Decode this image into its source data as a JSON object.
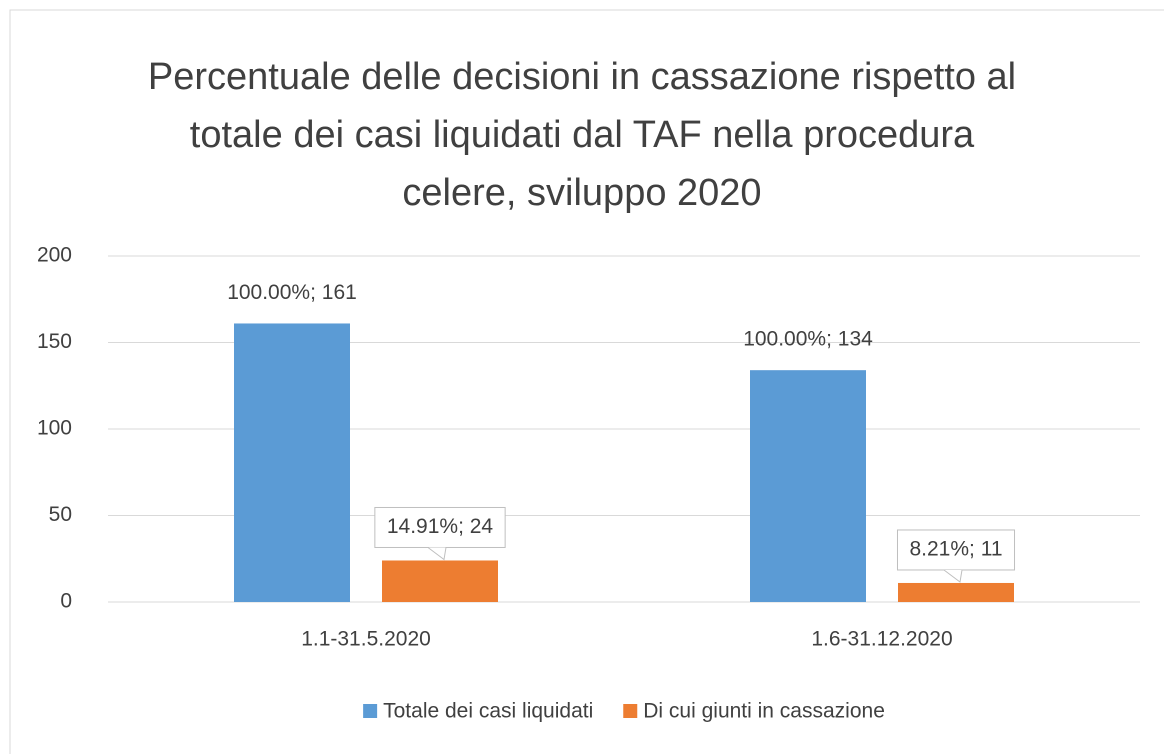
{
  "chart_data": {
    "type": "bar",
    "title": "Percentuale delle decisioni in cassazione rispetto al totale dei casi liquidati dal TAF nella procedura celere, sviluppo 2020",
    "categories": [
      "1.1-31.5.2020",
      "1.6-31.12.2020"
    ],
    "series": [
      {
        "name": "Totale dei casi liquidati",
        "color": "#5b9bd5",
        "values": [
          161,
          134
        ],
        "value_labels": [
          "100.00%; 161",
          "100.00%; 134"
        ]
      },
      {
        "name": "Di cui giunti in cassazione",
        "color": "#ed7d31",
        "values": [
          24,
          11
        ],
        "value_labels": [
          "14.91%; 24",
          "8.21%; 11"
        ]
      }
    ],
    "ylim": [
      0,
      200
    ],
    "yticks": [
      0,
      50,
      100,
      150,
      200
    ],
    "grid": true,
    "legend": "bottom"
  }
}
